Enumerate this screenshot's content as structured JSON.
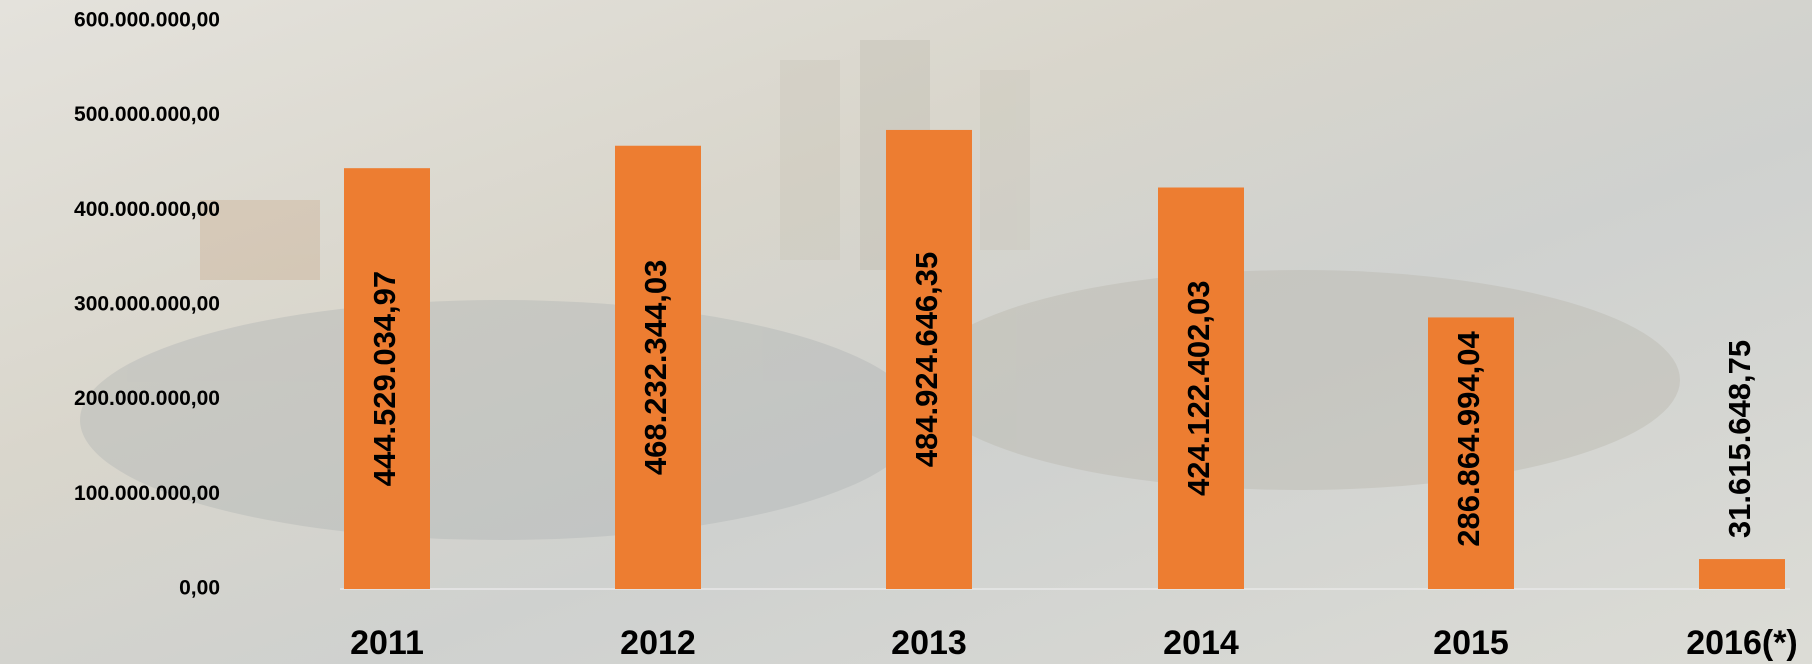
{
  "chart_data": {
    "type": "bar",
    "categories": [
      "2011",
      "2012",
      "2013",
      "2014",
      "2015",
      "2016(*)"
    ],
    "values": [
      444529034.97,
      468232344.03,
      484924646.35,
      424122402.03,
      286864994.04,
      31615648.75
    ],
    "value_labels": [
      "444.529.034,97",
      "468.232.344,03",
      "484.924.646,35",
      "424.122.402,03",
      "286.864.994,04",
      "31.615.648,75"
    ],
    "color": "#ed7d31",
    "ylim": [
      0,
      600000000
    ],
    "yticks": [
      {
        "value": 0,
        "label": "0,00"
      },
      {
        "value": 100000000,
        "label": "100.000.000,00"
      },
      {
        "value": 200000000,
        "label": "200.000.000,00"
      },
      {
        "value": 300000000,
        "label": "300.000.000,00"
      },
      {
        "value": 400000000,
        "label": "400.000.000,00"
      },
      {
        "value": 500000000,
        "label": "500.000.000,00"
      },
      {
        "value": 600000000,
        "label": "600.000.000,00"
      }
    ]
  }
}
